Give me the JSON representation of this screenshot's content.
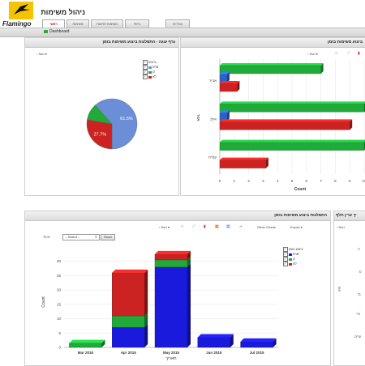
{
  "app": {
    "title": "ניהול משימות",
    "brand": "Flamingo"
  },
  "tabs": [
    "ראשי",
    "משימות",
    "משימות חדשות",
    "ניהול",
    "הגדרות"
  ],
  "dashboard_label": "Dashboard",
  "panels": {
    "pie": {
      "title": "גרף עוגה - התפלגות ביצוע משימות בזמן",
      "sort": "Sort"
    },
    "hbar": {
      "title": "ביצוע משימות בזמן",
      "sort": "Sort",
      "xlabel": "Count"
    },
    "stack": {
      "title": "התפלגות ביצוע משימות בזמן",
      "sort": "Sort",
      "other": "Other Charts",
      "export": "Export",
      "ylabel": "Count",
      "xlabel": "תאריך",
      "filter_label": "איזור:",
      "select": "-- Select --",
      "reset": "Reset"
    },
    "side": {
      "title": "יך ערין חלף",
      "sort": "Sort"
    }
  },
  "legend": {
    "title": "ביצוע...",
    "title_full": "ביצוע בזמן",
    "items": [
      {
        "name": "מרס",
        "color": "#6b8ed6"
      },
      {
        "name": "כן",
        "color": "#1faa3a"
      },
      {
        "name": "לא",
        "color": "#cc2222"
      }
    ]
  },
  "chart_data": [
    {
      "type": "pie",
      "title": "גרף עוגה - התפלגות ביצוע משימות בזמן",
      "labels": [
        "מרס",
        "כן",
        "לא"
      ],
      "values": [
        61.5,
        10.8,
        27.7
      ],
      "data_labels": [
        "61.5%",
        "",
        "27.7%"
      ]
    },
    {
      "type": "bar",
      "orientation": "horizontal",
      "title": "ביצוע משימות בזמן",
      "categories": [
        "אביר",
        "אילן",
        "קלרה"
      ],
      "series": [
        {
          "name": "מרס",
          "values": [
            0.5,
            0.5,
            0
          ]
        },
        {
          "name": "כן",
          "values": [
            7,
            10,
            10
          ]
        },
        {
          "name": "לא",
          "values": [
            1.2,
            9,
            3.2
          ]
        }
      ],
      "xlabel": "Count",
      "xlim": [
        0,
        10
      ],
      "xticks": [
        "0",
        "1",
        "2",
        "3",
        "4",
        "5",
        "6",
        "7",
        "8",
        "9",
        "10"
      ]
    },
    {
      "type": "bar",
      "stacked": true,
      "title": "התפלגות ביצוע משימות בזמן",
      "categories": [
        "Mar 2015",
        "Apr 2015",
        "May 2015",
        "Jun 2015",
        "Jul 2015"
      ],
      "series": [
        {
          "name": "מרס",
          "values": [
            0,
            7,
            28,
            3.5,
            2
          ]
        },
        {
          "name": "כן",
          "values": [
            1.5,
            4,
            2.5,
            0,
            0
          ]
        },
        {
          "name": "לא",
          "values": [
            0,
            15,
            2,
            0,
            0
          ]
        }
      ],
      "ylabel": "Count",
      "xlabel": "תאריך",
      "ylim": [
        0,
        35
      ],
      "yticks": [
        "0",
        "5",
        "10",
        "15",
        "20",
        "25",
        "30"
      ]
    }
  ],
  "side_labels": [
    "יכ",
    "ס",
    "נל",
    "מיי",
    "ערים"
  ]
}
